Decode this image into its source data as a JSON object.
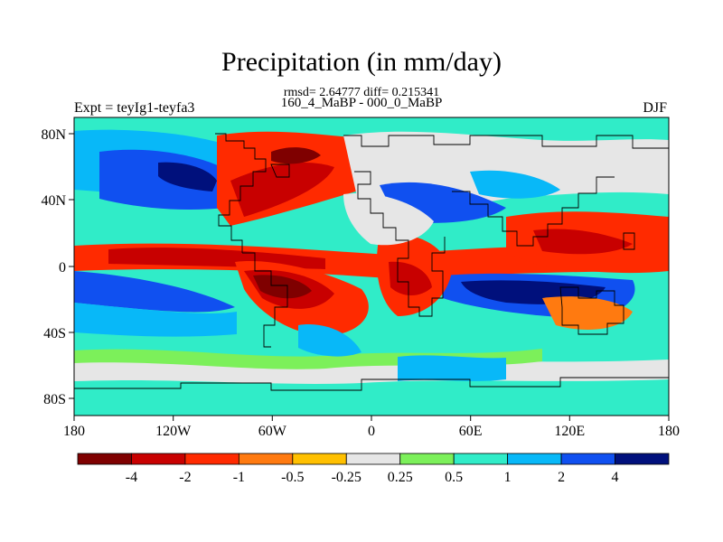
{
  "header": {
    "title": "Precipitation (in mm/day)",
    "rmsd_line": "rmsd= 2.64777 diff= 0.215341",
    "subtitle": "160_4_MaBP - 000_0_MaBP",
    "left_label": "Expt = teyIg1-teyfa3",
    "right_label": "DJF"
  },
  "axes": {
    "lon_ticks": [
      "180",
      "120W",
      "60W",
      "0",
      "60E",
      "120E",
      "180"
    ],
    "lat_ticks": [
      "80N",
      "40N",
      "0",
      "40S",
      "80S"
    ]
  },
  "colorbar": {
    "colors": [
      "#7f0000",
      "#c80000",
      "#ff2a00",
      "#ff7a10",
      "#ffc000",
      "#e6e6e6",
      "#7cf05a",
      "#30ecc8",
      "#08b8f8",
      "#1050f0",
      "#00107c"
    ],
    "labels": [
      "-4",
      "-2",
      "-1",
      "-0.5",
      "-0.25",
      "0.25",
      "0.5",
      "1",
      "2",
      "4"
    ]
  }
}
